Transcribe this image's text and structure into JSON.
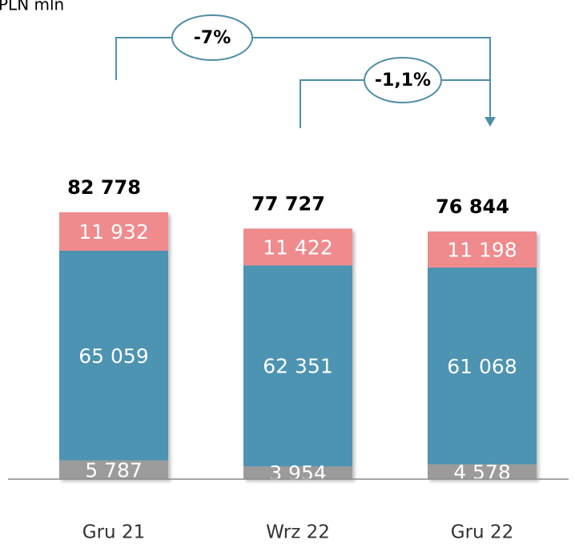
{
  "chart_data": {
    "type": "stacked_bar",
    "unit_label": "PLN mln",
    "categories": [
      "Gru 21",
      "Wrz 22",
      "Gru 22"
    ],
    "series": [
      {
        "color": "#9b9b9b",
        "values": [
          5787,
          3954,
          4578
        ],
        "value_labels": [
          "5 787",
          "3 954",
          "4 578"
        ]
      },
      {
        "color": "#4d93b2",
        "values": [
          65059,
          62351,
          61068
        ],
        "value_labels": [
          "65 059",
          "62 351",
          "61 068"
        ]
      },
      {
        "color": "#ef8a8d",
        "values": [
          11932,
          11422,
          11198
        ],
        "value_labels": [
          "11 932",
          "11 422",
          "11 198"
        ]
      }
    ],
    "totals": {
      "values": [
        82778,
        77727,
        76844
      ],
      "value_labels": [
        "82 778",
        "77 727",
        "76 844"
      ]
    },
    "annotations": [
      "-7%",
      "-1,1%"
    ]
  }
}
